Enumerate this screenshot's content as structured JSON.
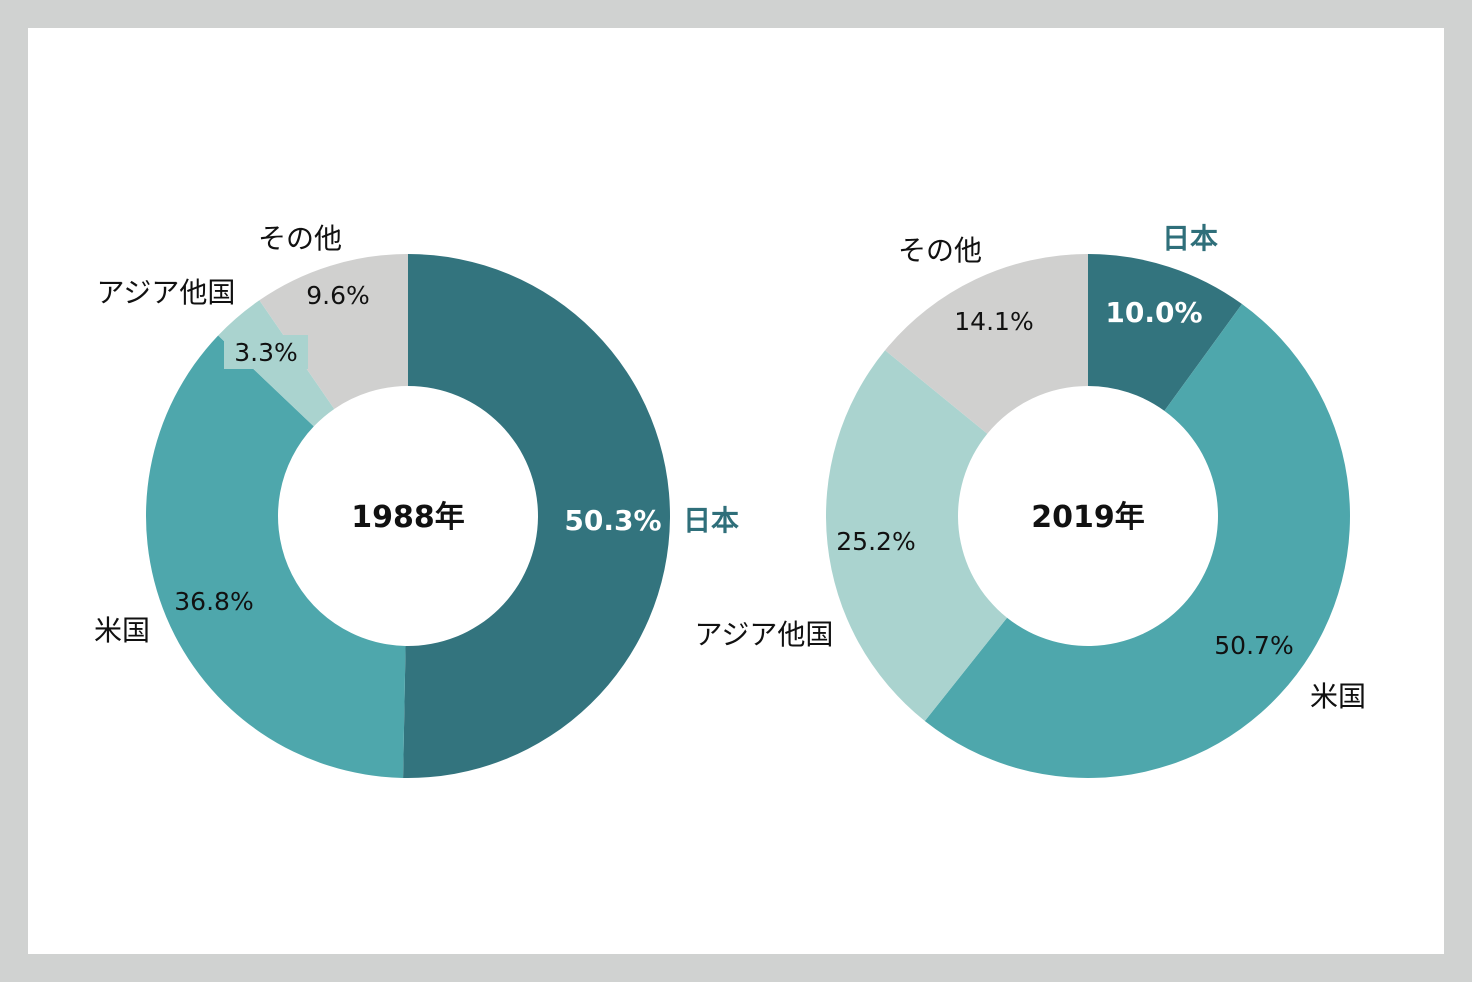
{
  "chart_data": [
    {
      "type": "donut",
      "center_label": "1988年",
      "series": [
        {
          "name": "日本",
          "value": 50.3,
          "label": "50.3%",
          "color": "#33747e"
        },
        {
          "name": "米国",
          "value": 36.8,
          "label": "36.8%",
          "color": "#4ea7ac"
        },
        {
          "name": "アジア他国",
          "value": 3.3,
          "label": "3.3%",
          "color": "#aad3cf"
        },
        {
          "name": "その他",
          "value": 9.6,
          "label": "9.6%",
          "color": "#d0d0cf"
        }
      ]
    },
    {
      "type": "donut",
      "center_label": "2019年",
      "series": [
        {
          "name": "日本",
          "value": 10.0,
          "label": "10.0%",
          "color": "#33747e"
        },
        {
          "name": "米国",
          "value": 50.7,
          "label": "50.7%",
          "color": "#4ea7ac"
        },
        {
          "name": "アジア他国",
          "value": 25.2,
          "label": "25.2%",
          "color": "#aad3cf"
        },
        {
          "name": "その他",
          "value": 14.1,
          "label": "14.1%",
          "color": "#d0d0cf"
        }
      ]
    }
  ]
}
